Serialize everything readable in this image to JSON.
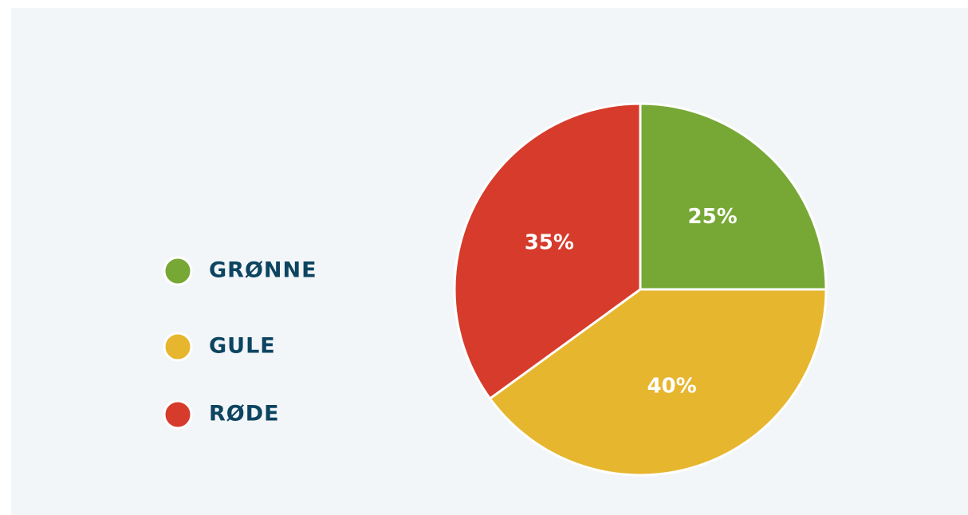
{
  "chart_data": {
    "type": "pie",
    "categories": [
      "GRØNNE",
      "GULE",
      "RØDE"
    ],
    "values": [
      25,
      40,
      35
    ],
    "value_labels": [
      "25%",
      "40%",
      "35%"
    ],
    "colors": [
      "#77a836",
      "#e6b62e",
      "#d63b2b"
    ],
    "legend": "left"
  }
}
